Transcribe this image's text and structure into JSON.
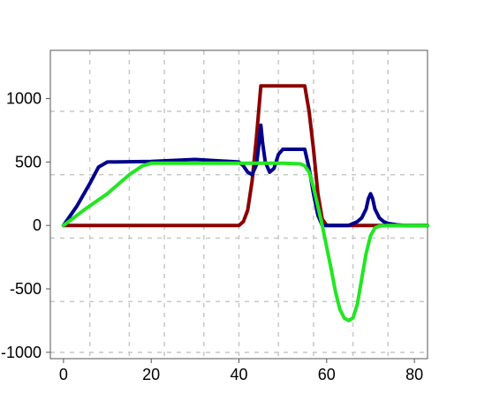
{
  "chart_data": {
    "type": "line",
    "title": "",
    "xlabel": "",
    "ylabel": "",
    "xlim": [
      -3,
      83
    ],
    "ylim": [
      -1050,
      1380
    ],
    "x_ticks": [
      0,
      20,
      40,
      60,
      80
    ],
    "y_ticks": [
      -1000,
      -500,
      0,
      500,
      1000
    ],
    "x_tick_labels": [
      "0",
      "20",
      "40",
      "60",
      "80"
    ],
    "y_tick_labels": [
      "-1000",
      "-500",
      "0",
      "500",
      "1000"
    ],
    "x_grid": [
      6,
      15,
      23,
      32,
      40,
      49,
      57,
      66,
      74
    ],
    "y_grid": [
      -1000,
      -600,
      -100,
      400,
      900
    ],
    "grid": true,
    "legend": "none",
    "series": [
      {
        "color": "#8b0000",
        "x": [
          0,
          40,
          41,
          42,
          43,
          44,
          45,
          55,
          56,
          57,
          58,
          59,
          60,
          70,
          83
        ],
        "y": [
          0,
          0,
          30,
          120,
          350,
          700,
          1100,
          1100,
          900,
          600,
          250,
          50,
          0,
          0,
          0
        ]
      },
      {
        "color": "#00008b",
        "x": [
          0,
          3,
          6,
          8,
          10,
          20,
          30,
          40,
          41,
          42,
          43,
          44,
          44.6,
          45,
          45.4,
          46,
          47,
          48,
          49,
          50,
          55,
          56,
          57,
          58,
          59,
          60,
          65,
          67,
          68,
          69,
          69.5,
          70,
          70.5,
          71,
          72,
          73,
          74,
          76,
          78,
          83
        ],
        "y": [
          0,
          150,
          330,
          460,
          500,
          505,
          520,
          500,
          470,
          420,
          400,
          480,
          650,
          790,
          650,
          500,
          420,
          450,
          560,
          600,
          600,
          450,
          250,
          80,
          0,
          0,
          0,
          30,
          60,
          130,
          210,
          250,
          210,
          130,
          60,
          30,
          15,
          5,
          0,
          0
        ]
      },
      {
        "color": "#22e622",
        "x": [
          0,
          5,
          10,
          13,
          15,
          18,
          20,
          30,
          40,
          50,
          54,
          55,
          56,
          57,
          58,
          59,
          60,
          61,
          62,
          63,
          64,
          65,
          66,
          67,
          68,
          69,
          70,
          71,
          72,
          74,
          83
        ],
        "y": [
          0,
          130,
          250,
          340,
          400,
          470,
          490,
          490,
          490,
          490,
          485,
          470,
          420,
          300,
          150,
          0,
          -170,
          -340,
          -520,
          -660,
          -730,
          -750,
          -730,
          -620,
          -420,
          -220,
          -80,
          -20,
          -5,
          0,
          0
        ]
      }
    ]
  }
}
